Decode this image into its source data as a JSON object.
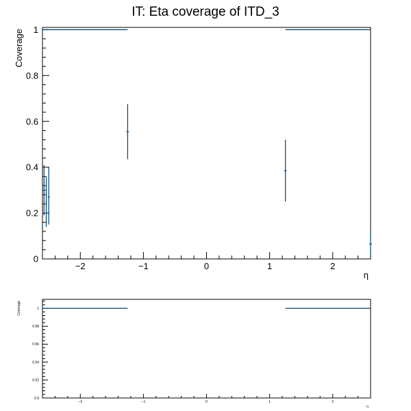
{
  "title": "IT: Eta coverage of ITD_3",
  "colors": {
    "series": "#00406e",
    "axis": "#000000",
    "background": "#ffffff"
  },
  "chart_data": [
    {
      "type": "scatter",
      "panel": "main",
      "title": "IT: Eta coverage of ITD_3",
      "xlabel": "η",
      "ylabel": "Coverage",
      "xlim": [
        -2.6,
        2.6
      ],
      "ylim": [
        0,
        1.01
      ],
      "x_ticks": [
        -2,
        -1,
        0,
        1,
        2
      ],
      "x_tick_labels": [
        "−2",
        "−1",
        "0",
        "1",
        "2"
      ],
      "y_ticks": [
        0,
        0.2,
        0.4,
        0.6,
        0.8,
        1
      ],
      "y_tick_labels": [
        "0",
        "0.2",
        "0.4",
        "0.6",
        "0.8",
        "1"
      ],
      "grid": false,
      "points": [
        {
          "x": -2.575,
          "xerr": 0.025,
          "y": 0.3,
          "ylo": 0.19,
          "yhi": 0.41
        },
        {
          "x": -2.54,
          "xerr": 0.01,
          "y": 0.25,
          "ylo": 0.14,
          "yhi": 0.36
        },
        {
          "x": -2.5,
          "xerr": 0.015,
          "y": 0.27,
          "ylo": 0.15,
          "yhi": 0.4
        },
        {
          "x": -1.25,
          "xerr": 0.02,
          "y": 0.555,
          "ylo": 0.435,
          "yhi": 0.675
        },
        {
          "x": 1.25,
          "xerr": 0.02,
          "y": 0.385,
          "ylo": 0.25,
          "yhi": 0.52
        },
        {
          "x": 2.6,
          "xerr": 0.02,
          "y": 0.065,
          "ylo": 0.01,
          "yhi": 0.125
        }
      ],
      "segments": [
        {
          "x0": -2.6,
          "x1": -1.25,
          "y": 1.0
        },
        {
          "x0": 1.25,
          "x1": 2.6,
          "y": 1.0
        }
      ]
    },
    {
      "type": "line",
      "panel": "zoom",
      "xlabel": "η",
      "ylabel": "Coverage",
      "xlim": [
        -2.6,
        2.6
      ],
      "ylim": [
        0.9,
        1.01
      ],
      "x_ticks": [
        -2,
        -1,
        0,
        1,
        2
      ],
      "x_tick_labels": [
        "−2",
        "−1",
        "0",
        "1",
        "2"
      ],
      "y_ticks": [
        0.9,
        0.92,
        0.94,
        0.96,
        0.98,
        1
      ],
      "y_tick_labels": [
        "0.9",
        "0.92",
        "0.94",
        "0.96",
        "0.98",
        "1"
      ],
      "grid": false,
      "segments": [
        {
          "x0": -2.6,
          "x1": -1.25,
          "y": 1.0
        },
        {
          "x0": 1.25,
          "x1": 2.6,
          "y": 1.0
        }
      ]
    }
  ]
}
